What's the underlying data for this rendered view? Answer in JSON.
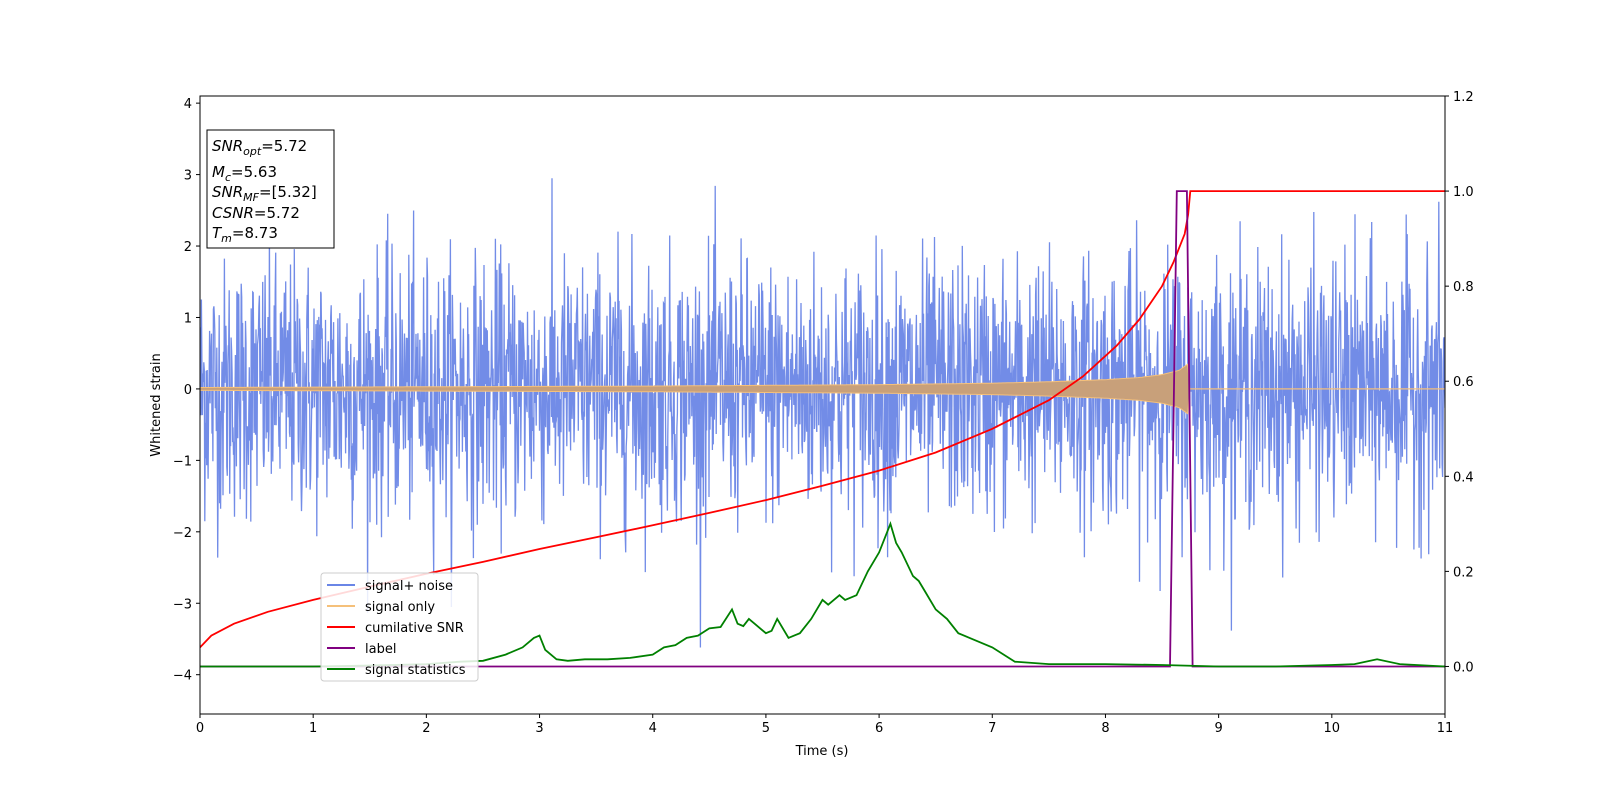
{
  "chart_data": {
    "type": "line",
    "xlabel": "Time (s)",
    "ylabel": "Whitened strain",
    "xlim": [
      0,
      11
    ],
    "ylim_left": [
      -4.55,
      4.1
    ],
    "ylim_right": [
      -0.1,
      1.2
    ],
    "x_ticks": [
      0,
      1,
      2,
      3,
      4,
      5,
      6,
      7,
      8,
      9,
      10,
      11
    ],
    "y_ticks_left": [
      -4,
      -3,
      -2,
      -1,
      0,
      1,
      2,
      3,
      4
    ],
    "y_ticks_right": [
      0.0,
      0.2,
      0.4,
      0.6,
      0.8,
      1.0,
      1.2
    ],
    "grid": false,
    "legend_position": "lower-left",
    "info_box": {
      "lines": [
        {
          "sym": "SNR",
          "sub": "opt",
          "val": "=5.72"
        },
        {
          "sym": "M",
          "sub": "c",
          "val": "=5.63"
        },
        {
          "sym": "SNR",
          "sub": "MF",
          "val": "=[5.32]"
        },
        {
          "sym": "CSNR",
          "sub": "",
          "val": "=5.72"
        },
        {
          "sym": "T",
          "sub": "m",
          "val": "=8.73"
        }
      ]
    },
    "series": [
      {
        "name": "signal+ noise",
        "axis": "left",
        "color": "#6a86e6",
        "description_points": {
          "x": [
            0,
            11
          ],
          "y_std": 0.9,
          "y_range": [
            -4.15,
            3.7
          ]
        }
      },
      {
        "name": "signal only",
        "axis": "left",
        "color": "#f5c07a",
        "envelope": {
          "x": [
            0,
            1,
            2,
            3,
            4,
            5,
            6,
            7,
            7.5,
            8,
            8.3,
            8.5,
            8.65,
            8.73,
            8.74,
            11
          ],
          "amplitude": [
            0.02,
            0.025,
            0.03,
            0.035,
            0.04,
            0.05,
            0.06,
            0.08,
            0.1,
            0.13,
            0.16,
            0.2,
            0.26,
            0.35,
            0.0,
            0.0
          ]
        }
      },
      {
        "name": "cumilative SNR",
        "axis": "right",
        "color": "#ff0000",
        "x": [
          0,
          0.1,
          0.3,
          0.6,
          1,
          1.5,
          2,
          2.5,
          3,
          3.5,
          4,
          4.5,
          5,
          5.5,
          6,
          6.5,
          7,
          7.5,
          7.8,
          8.1,
          8.3,
          8.5,
          8.6,
          8.7,
          8.73,
          8.75,
          11
        ],
        "values": [
          0.04,
          0.065,
          0.09,
          0.115,
          0.14,
          0.168,
          0.195,
          0.22,
          0.247,
          0.272,
          0.297,
          0.323,
          0.35,
          0.38,
          0.412,
          0.45,
          0.5,
          0.56,
          0.61,
          0.675,
          0.73,
          0.8,
          0.85,
          0.91,
          0.95,
          1.0,
          1.0
        ]
      },
      {
        "name": "label",
        "axis": "right",
        "color": "#800080",
        "x": [
          0,
          8.57,
          8.63,
          8.72,
          8.77,
          11
        ],
        "values": [
          0,
          0,
          1,
          1,
          0,
          0
        ]
      },
      {
        "name": "signal statistics",
        "axis": "right",
        "color": "#008000",
        "x": [
          0,
          0.5,
          1,
          1.5,
          2,
          2.3,
          2.5,
          2.7,
          2.85,
          2.95,
          3.0,
          3.05,
          3.15,
          3.25,
          3.4,
          3.6,
          3.8,
          4.0,
          4.1,
          4.2,
          4.3,
          4.4,
          4.5,
          4.6,
          4.7,
          4.75,
          4.8,
          4.85,
          4.9,
          5.0,
          5.05,
          5.1,
          5.2,
          5.3,
          5.4,
          5.5,
          5.55,
          5.65,
          5.7,
          5.8,
          5.9,
          6.0,
          6.1,
          6.15,
          6.2,
          6.3,
          6.35,
          6.4,
          6.5,
          6.6,
          6.7,
          6.8,
          7.0,
          7.2,
          7.5,
          8.0,
          8.5,
          9.0,
          9.5,
          10.0,
          10.2,
          10.4,
          10.6,
          11
        ],
        "values": [
          0.0,
          0.0,
          0.0,
          0.002,
          0.005,
          0.01,
          0.012,
          0.025,
          0.04,
          0.06,
          0.065,
          0.035,
          0.015,
          0.012,
          0.015,
          0.015,
          0.018,
          0.025,
          0.04,
          0.045,
          0.06,
          0.065,
          0.08,
          0.083,
          0.12,
          0.09,
          0.085,
          0.1,
          0.09,
          0.07,
          0.075,
          0.1,
          0.06,
          0.07,
          0.1,
          0.14,
          0.13,
          0.15,
          0.14,
          0.15,
          0.2,
          0.24,
          0.3,
          0.26,
          0.24,
          0.19,
          0.18,
          0.16,
          0.12,
          0.1,
          0.07,
          0.06,
          0.04,
          0.01,
          0.005,
          0.005,
          0.003,
          0.0,
          0.0,
          0.003,
          0.005,
          0.015,
          0.005,
          0.0
        ]
      }
    ]
  }
}
